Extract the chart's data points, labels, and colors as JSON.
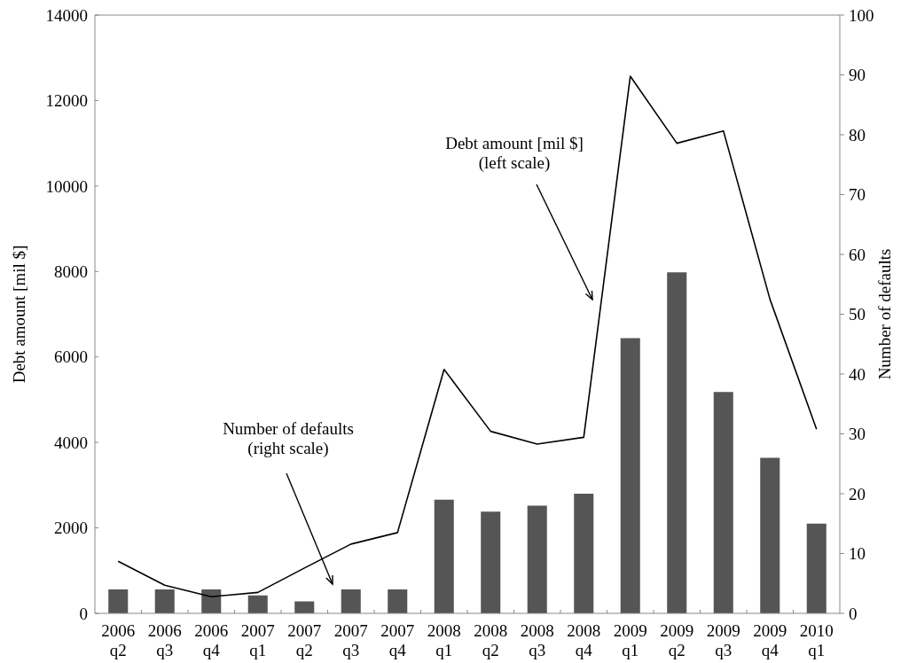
{
  "chart_data": {
    "type": "bar",
    "categories": [
      "2006 q2",
      "2006 q3",
      "2006 q4",
      "2007 q1",
      "2007 q2",
      "2007 q3",
      "2007 q4",
      "2008 q1",
      "2008 q2",
      "2008 q3",
      "2008 q4",
      "2009 q1",
      "2009 q2",
      "2009 q3",
      "2009 q4",
      "2010 q1"
    ],
    "series": [
      {
        "axis": "y2",
        "color": "#555555",
        "values": [
          4,
          4,
          4,
          3,
          2,
          4,
          4,
          19,
          17,
          18,
          20,
          46,
          57,
          37,
          26,
          15
        ]
      },
      {
        "type": "line",
        "axis": "y",
        "color": "#000000",
        "values": [
          1220,
          660,
          390,
          490,
          1060,
          1620,
          1890,
          5710,
          4260,
          3960,
          4120,
          12570,
          11000,
          11290,
          7350,
          4310
        ]
      }
    ],
    "ylabel": "Debt amount [mil $]",
    "y2label": "Number of defaults",
    "ylim": [
      0,
      14000
    ],
    "yticks": [
      0,
      2000,
      4000,
      6000,
      8000,
      10000,
      12000,
      14000
    ],
    "y2lim": [
      0,
      100
    ],
    "y2ticks": [
      0,
      10,
      20,
      30,
      40,
      50,
      60,
      70,
      80,
      90,
      100
    ],
    "annotations": [
      "Number of defaults\n(right scale)",
      "Debt amount [mil $]\n(left scale)"
    ],
    "grid": false
  }
}
